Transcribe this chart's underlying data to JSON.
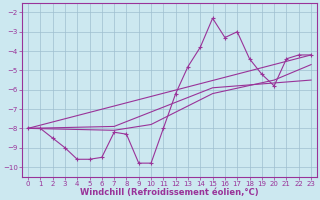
{
  "background_color": "#cce8f0",
  "grid_color": "#9fbfcf",
  "line_color": "#993399",
  "xlabel": "Windchill (Refroidissement éolien,°C)",
  "xlabel_fontsize": 6,
  "ylim": [
    -10.5,
    -1.5
  ],
  "xlim": [
    -0.5,
    23.5
  ],
  "yticks": [
    -10,
    -9,
    -8,
    -7,
    -6,
    -5,
    -4,
    -3,
    -2
  ],
  "xticks": [
    0,
    1,
    2,
    3,
    4,
    5,
    6,
    7,
    8,
    9,
    10,
    11,
    12,
    13,
    14,
    15,
    16,
    17,
    18,
    19,
    20,
    21,
    22,
    23
  ],
  "series": [
    [
      0,
      -8.0
    ],
    [
      1,
      -8.0
    ],
    [
      2,
      -8.5
    ],
    [
      3,
      -9.0
    ],
    [
      4,
      -9.6
    ],
    [
      5,
      -9.6
    ],
    [
      6,
      -9.5
    ],
    [
      7,
      -8.2
    ],
    [
      8,
      -8.3
    ],
    [
      9,
      -9.8
    ],
    [
      10,
      -9.8
    ],
    [
      11,
      -8.0
    ],
    [
      12,
      -6.2
    ],
    [
      13,
      -4.8
    ],
    [
      14,
      -3.8
    ],
    [
      15,
      -2.3
    ],
    [
      16,
      -3.3
    ],
    [
      17,
      -3.0
    ],
    [
      18,
      -4.4
    ],
    [
      19,
      -5.2
    ],
    [
      20,
      -5.8
    ],
    [
      21,
      -4.4
    ],
    [
      22,
      -4.2
    ],
    [
      23,
      -4.2
    ]
  ],
  "line2": [
    [
      0,
      -8.0
    ],
    [
      23,
      -4.2
    ]
  ],
  "line3": [
    [
      0,
      -8.0
    ],
    [
      7,
      -7.9
    ],
    [
      15,
      -5.9
    ],
    [
      23,
      -5.5
    ]
  ],
  "line4": [
    [
      0,
      -8.0
    ],
    [
      7,
      -8.1
    ],
    [
      10,
      -7.8
    ],
    [
      15,
      -6.2
    ],
    [
      20,
      -5.5
    ],
    [
      23,
      -4.7
    ]
  ]
}
